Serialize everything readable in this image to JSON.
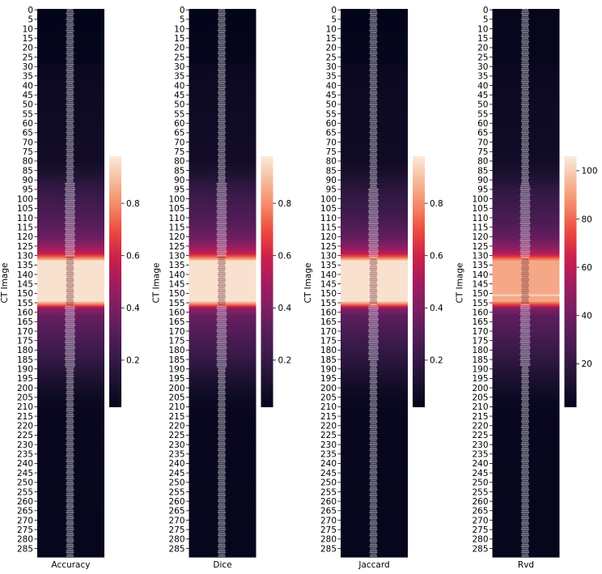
{
  "chart_data": [
    {
      "type": "heatmap",
      "title": "",
      "xlabel": "Accuracy",
      "ylabel": "CT Image",
      "row_range": [
        0,
        289
      ],
      "tick_step": 5,
      "colorbar": {
        "min": 0.02,
        "max": 0.98,
        "ticks": [
          "0.2",
          "0.4",
          "0.6",
          "0.8"
        ]
      },
      "profile": [
        {
          "row": 0,
          "value": 0.02
        },
        {
          "row": 28,
          "value": 0.03
        },
        {
          "row": 30,
          "value": 0.05
        },
        {
          "row": 80,
          "value": 0.08
        },
        {
          "row": 88,
          "value": 0.13
        },
        {
          "row": 95,
          "value": 0.2
        },
        {
          "row": 105,
          "value": 0.26
        },
        {
          "row": 113,
          "value": 0.3
        },
        {
          "row": 120,
          "value": 0.36
        },
        {
          "row": 125,
          "value": 0.45
        },
        {
          "row": 129,
          "value": 0.58
        },
        {
          "row": 131,
          "value": 0.75
        },
        {
          "row": 133,
          "value": 0.96
        },
        {
          "row": 154,
          "value": 0.96
        },
        {
          "row": 156,
          "value": 0.75
        },
        {
          "row": 158,
          "value": 0.45
        },
        {
          "row": 162,
          "value": 0.35
        },
        {
          "row": 172,
          "value": 0.28
        },
        {
          "row": 185,
          "value": 0.2
        },
        {
          "row": 195,
          "value": 0.12
        },
        {
          "row": 205,
          "value": 0.06
        },
        {
          "row": 212,
          "value": 0.04
        },
        {
          "row": 289,
          "value": 0.03
        }
      ]
    },
    {
      "type": "heatmap",
      "title": "",
      "xlabel": "Dice",
      "ylabel": "CT Image",
      "row_range": [
        0,
        289
      ],
      "tick_step": 5,
      "colorbar": {
        "min": 0.02,
        "max": 0.98,
        "ticks": [
          "0.2",
          "0.4",
          "0.6",
          "0.8"
        ]
      },
      "profile": [
        {
          "row": 0,
          "value": 0.02
        },
        {
          "row": 28,
          "value": 0.03
        },
        {
          "row": 30,
          "value": 0.05
        },
        {
          "row": 80,
          "value": 0.08
        },
        {
          "row": 88,
          "value": 0.13
        },
        {
          "row": 95,
          "value": 0.2
        },
        {
          "row": 105,
          "value": 0.26
        },
        {
          "row": 113,
          "value": 0.3
        },
        {
          "row": 120,
          "value": 0.36
        },
        {
          "row": 125,
          "value": 0.45
        },
        {
          "row": 129,
          "value": 0.58
        },
        {
          "row": 131,
          "value": 0.75
        },
        {
          "row": 133,
          "value": 0.96
        },
        {
          "row": 154,
          "value": 0.96
        },
        {
          "row": 156,
          "value": 0.75
        },
        {
          "row": 158,
          "value": 0.45
        },
        {
          "row": 162,
          "value": 0.35
        },
        {
          "row": 172,
          "value": 0.28
        },
        {
          "row": 185,
          "value": 0.2
        },
        {
          "row": 195,
          "value": 0.12
        },
        {
          "row": 205,
          "value": 0.06
        },
        {
          "row": 212,
          "value": 0.04
        },
        {
          "row": 289,
          "value": 0.03
        }
      ]
    },
    {
      "type": "heatmap",
      "title": "",
      "xlabel": "Jaccard",
      "ylabel": "CT Image",
      "row_range": [
        0,
        289
      ],
      "tick_step": 5,
      "colorbar": {
        "min": 0.02,
        "max": 0.98,
        "ticks": [
          "0.2",
          "0.4",
          "0.6",
          "0.8"
        ]
      },
      "profile": [
        {
          "row": 0,
          "value": 0.02
        },
        {
          "row": 28,
          "value": 0.03
        },
        {
          "row": 30,
          "value": 0.05
        },
        {
          "row": 80,
          "value": 0.07
        },
        {
          "row": 88,
          "value": 0.11
        },
        {
          "row": 95,
          "value": 0.17
        },
        {
          "row": 105,
          "value": 0.22
        },
        {
          "row": 113,
          "value": 0.27
        },
        {
          "row": 120,
          "value": 0.33
        },
        {
          "row": 125,
          "value": 0.42
        },
        {
          "row": 129,
          "value": 0.56
        },
        {
          "row": 131,
          "value": 0.74
        },
        {
          "row": 133,
          "value": 0.96
        },
        {
          "row": 154,
          "value": 0.96
        },
        {
          "row": 156,
          "value": 0.74
        },
        {
          "row": 158,
          "value": 0.43
        },
        {
          "row": 162,
          "value": 0.32
        },
        {
          "row": 172,
          "value": 0.25
        },
        {
          "row": 185,
          "value": 0.17
        },
        {
          "row": 195,
          "value": 0.1
        },
        {
          "row": 205,
          "value": 0.05
        },
        {
          "row": 212,
          "value": 0.04
        },
        {
          "row": 289,
          "value": 0.03
        }
      ]
    },
    {
      "type": "heatmap",
      "title": "",
      "xlabel": "Rvd",
      "ylabel": "CT Image",
      "row_range": [
        0,
        289
      ],
      "tick_step": 5,
      "colorbar": {
        "min": 2,
        "max": 106,
        "ticks": [
          "20",
          "40",
          "60",
          "80",
          "100"
        ]
      },
      "profile": [
        {
          "row": 0,
          "value": 3
        },
        {
          "row": 28,
          "value": 3
        },
        {
          "row": 30,
          "value": 5
        },
        {
          "row": 80,
          "value": 8
        },
        {
          "row": 88,
          "value": 13
        },
        {
          "row": 95,
          "value": 20
        },
        {
          "row": 105,
          "value": 26
        },
        {
          "row": 113,
          "value": 30
        },
        {
          "row": 120,
          "value": 36
        },
        {
          "row": 125,
          "value": 45
        },
        {
          "row": 129,
          "value": 58
        },
        {
          "row": 131,
          "value": 75
        },
        {
          "row": 133,
          "value": 92
        },
        {
          "row": 150,
          "value": 92
        },
        {
          "row": 151,
          "value": 100
        },
        {
          "row": 152,
          "value": 92
        },
        {
          "row": 154,
          "value": 92
        },
        {
          "row": 156,
          "value": 72
        },
        {
          "row": 158,
          "value": 45
        },
        {
          "row": 162,
          "value": 35
        },
        {
          "row": 172,
          "value": 28
        },
        {
          "row": 185,
          "value": 20
        },
        {
          "row": 195,
          "value": 12
        },
        {
          "row": 205,
          "value": 6
        },
        {
          "row": 212,
          "value": 4
        },
        {
          "row": 289,
          "value": 3
        }
      ]
    }
  ]
}
